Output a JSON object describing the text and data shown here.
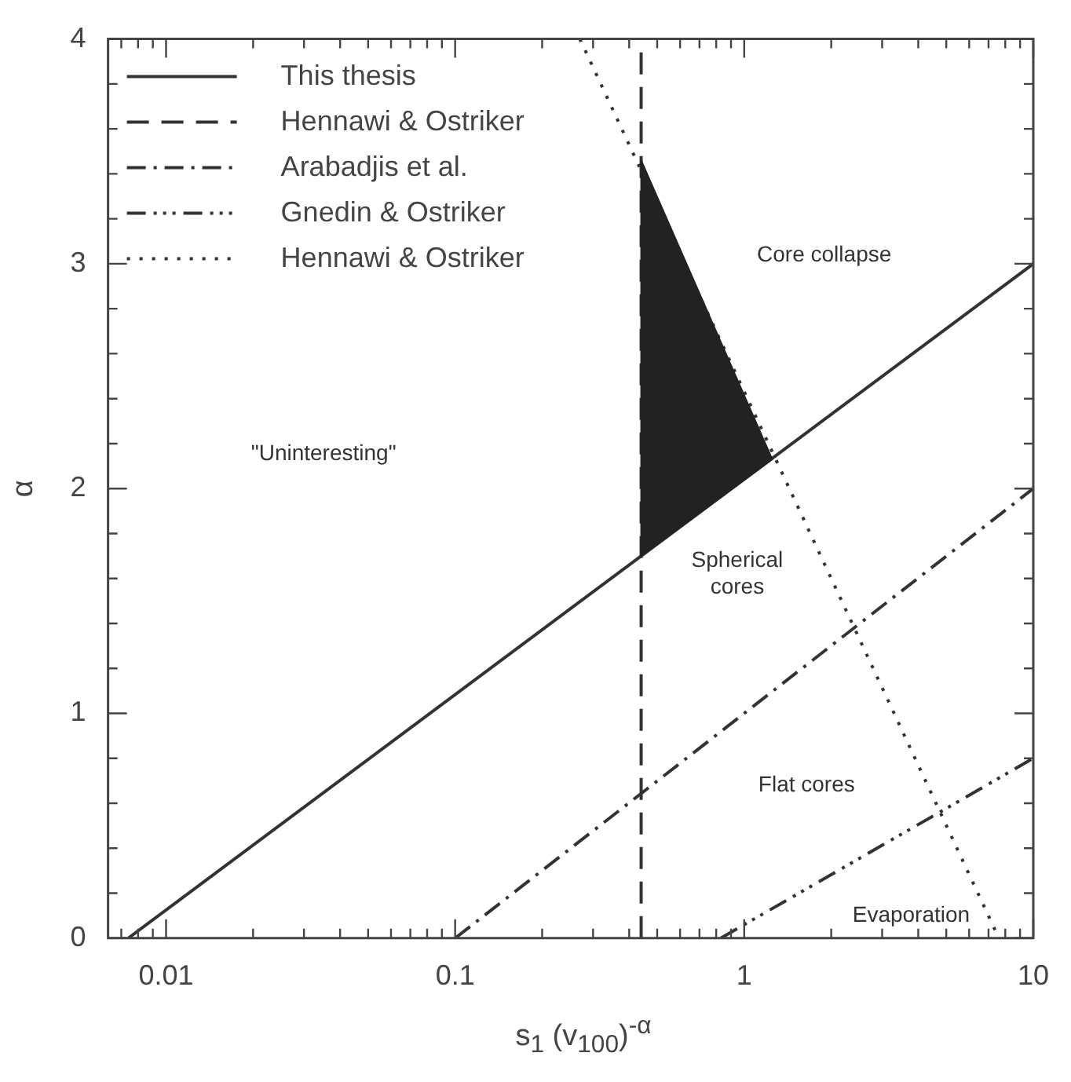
{
  "chart_data": {
    "type": "line",
    "xlabel": "s$_{1}$ (v$_{100}$)$^{-α}$",
    "ylabel": "α",
    "log": "x",
    "legend": "top left",
    "grid": false,
    "xlim": [
      0.0063,
      10
    ],
    "ylim": [
      0,
      4
    ],
    "xticks": [
      {
        "value": 0.007,
        "label": null
      },
      {
        "value": 0.008,
        "label": null
      },
      {
        "value": 0.009,
        "label": null
      },
      0.01,
      {
        "value": 0.02,
        "label": null
      },
      {
        "value": 0.03,
        "label": null
      },
      {
        "value": 0.04,
        "label": null
      },
      {
        "value": 0.05,
        "label": null
      },
      {
        "value": 0.06,
        "label": null
      },
      {
        "value": 0.07,
        "label": null
      },
      {
        "value": 0.08,
        "label": null
      },
      {
        "value": 0.09,
        "label": null
      },
      0.1,
      {
        "value": 0.2,
        "label": null
      },
      {
        "value": 0.3,
        "label": null
      },
      {
        "value": 0.4,
        "label": null
      },
      {
        "value": 0.5,
        "label": null
      },
      {
        "value": 0.6,
        "label": null
      },
      {
        "value": 0.7,
        "label": null
      },
      {
        "value": 0.8,
        "label": null
      },
      {
        "value": 0.9,
        "label": null
      },
      1,
      {
        "value": 2,
        "label": null
      },
      {
        "value": 3,
        "label": null
      },
      {
        "value": 4,
        "label": null
      },
      {
        "value": 5,
        "label": null
      },
      {
        "value": 6,
        "label": null
      },
      {
        "value": 7,
        "label": null
      },
      {
        "value": 8,
        "label": null
      },
      {
        "value": 9,
        "label": null
      },
      10
    ],
    "yticks": [
      0,
      {
        "value": 0.2,
        "label": null
      },
      {
        "value": 0.4,
        "label": null
      },
      {
        "value": 0.6,
        "label": null
      },
      {
        "value": 0.8,
        "label": null
      },
      1,
      {
        "value": 1.2,
        "label": null
      },
      {
        "value": 1.4,
        "label": null
      },
      {
        "value": 1.6,
        "label": null
      },
      {
        "value": 1.8,
        "label": null
      },
      2,
      {
        "value": 2.2,
        "label": null
      },
      {
        "value": 2.4,
        "label": null
      },
      {
        "value": 2.6,
        "label": null
      },
      {
        "value": 2.8,
        "label": null
      },
      3,
      {
        "value": 3.2,
        "label": null
      },
      {
        "value": 3.4,
        "label": null
      },
      {
        "value": 3.6,
        "label": null
      },
      {
        "value": 3.8,
        "label": null
      },
      4
    ],
    "series": [
      {
        "type": "area",
        "color": "#222222",
        "x": [
          0.44,
          1.25,
          0.44,
          0.44
        ],
        "values": [
          3.46,
          2.13,
          1.7,
          3.46
        ]
      },
      {
        "name": "This thesis",
        "color": "#333333",
        "line_style": "solid",
        "x": [
          0.0074,
          10
        ],
        "values": [
          0,
          3
        ]
      },
      {
        "name": "Hennawi & Ostriker",
        "color": "#333333",
        "line_style": "dashed",
        "x": [
          0.44,
          0.44
        ],
        "values": [
          0,
          4
        ]
      },
      {
        "name": "Arabadjis et al.",
        "color": "#333333",
        "line_style": "dashdot",
        "x": [
          0.1,
          10
        ],
        "values": [
          0,
          2
        ]
      },
      {
        "name": "Gnedin & Ostriker",
        "color": "#333333",
        "line_style": "dashdotdot",
        "x": [
          0.83,
          10
        ],
        "values": [
          0,
          0.8
        ]
      },
      {
        "name": "Hennawi & Ostriker",
        "color": "#333333",
        "line_style": "dotted",
        "x": [
          0.27,
          7.6
        ],
        "values": [
          4,
          0
        ]
      }
    ],
    "annotations": [
      "Core collapse",
      "\"Uninteresting\"",
      "Spherical\ncores",
      "Flat cores",
      "Evaporation"
    ]
  }
}
